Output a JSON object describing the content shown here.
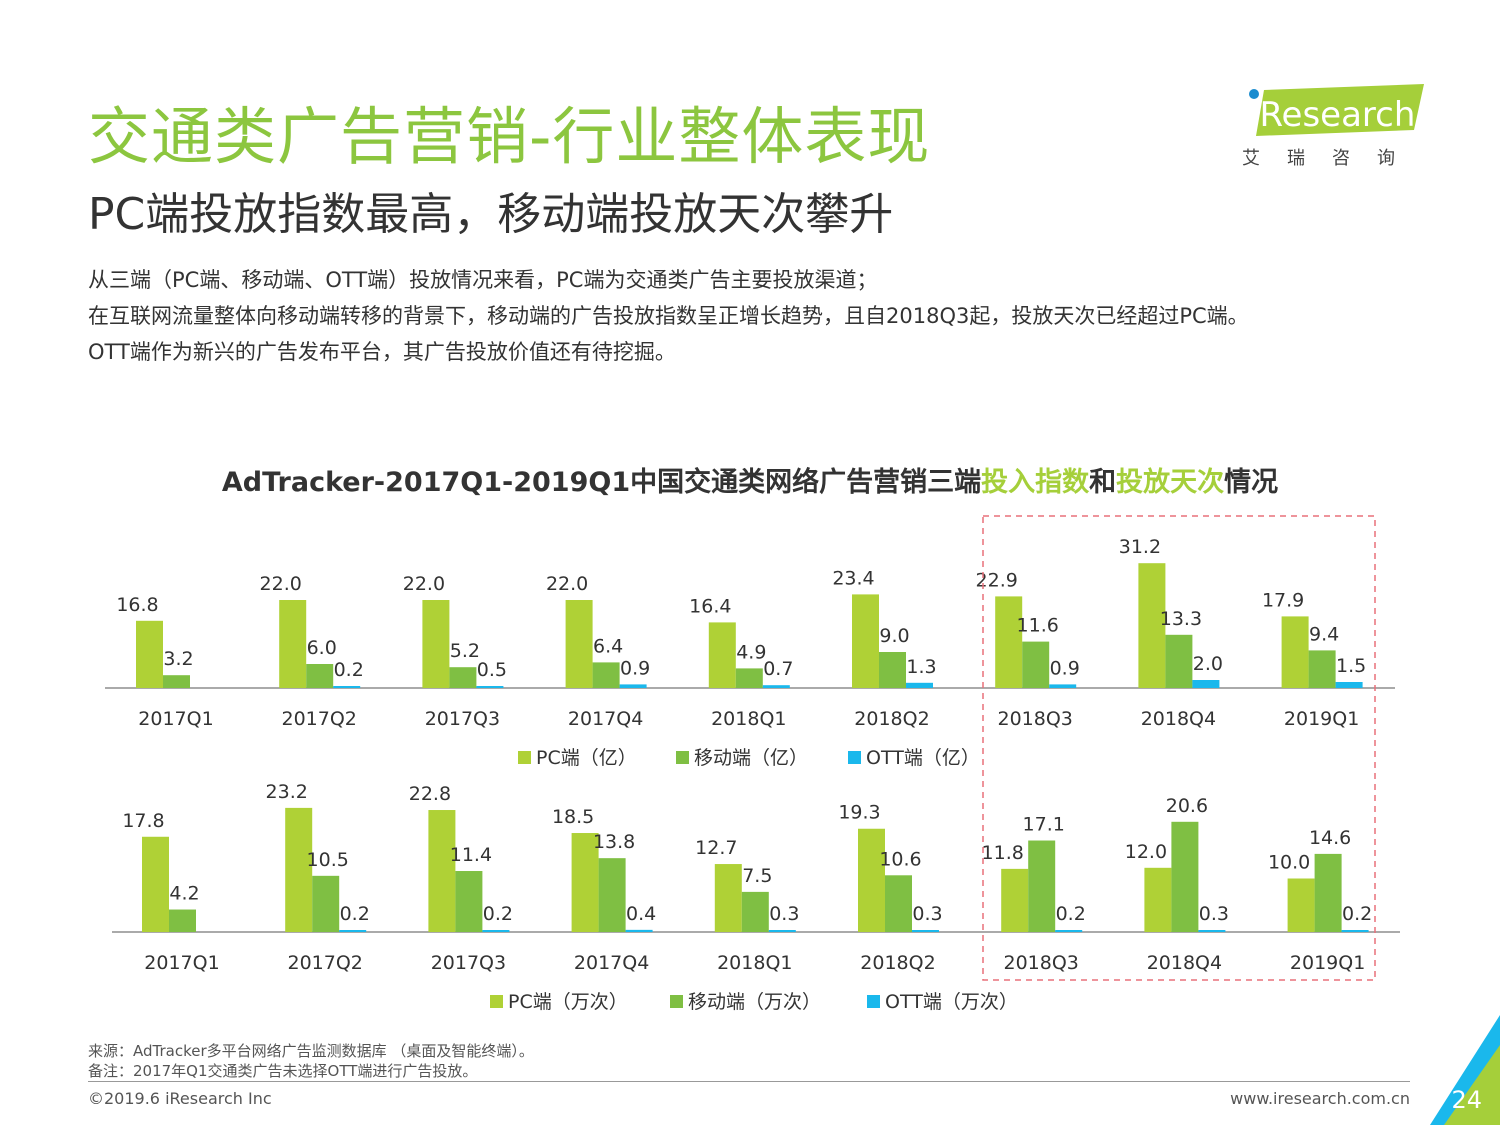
{
  "header": {
    "title": "交通类广告营销-行业整体表现",
    "subtitle": "PC端投放指数最高，移动端投放天次攀升"
  },
  "logo": {
    "brand": "iResearch",
    "chinese": "艾瑞咨询"
  },
  "description": [
    "从三端（PC端、移动端、OTT端）投放情况来看，PC端为交通类广告主要投放渠道；",
    "在互联网流量整体向移动端转移的背景下，移动端的广告投放指数呈正增长趋势，且自2018Q3起，投放天次已经超过PC端。",
    "OTT端作为新兴的广告发布平台，其广告投放价值还有待挖掘。"
  ],
  "chart_title": {
    "prefix": "AdTracker-2017Q1-2019Q1中国交通类网络广告营销三端",
    "highlight1": "投入指数",
    "middle": "和",
    "highlight2": "投放天次",
    "suffix": "情况"
  },
  "chart_data": [
    {
      "type": "bar",
      "categories": [
        "2017Q1",
        "2017Q2",
        "2017Q3",
        "2017Q4",
        "2018Q1",
        "2018Q2",
        "2018Q3",
        "2018Q4",
        "2019Q1"
      ],
      "series": [
        {
          "name": "PC端（亿）",
          "values": [
            16.8,
            22.0,
            22.0,
            22.0,
            16.4,
            23.4,
            22.9,
            31.2,
            17.9
          ]
        },
        {
          "name": "移动端（亿）",
          "values": [
            3.2,
            6.0,
            5.2,
            6.4,
            4.9,
            9.0,
            11.6,
            13.3,
            9.4
          ]
        },
        {
          "name": "OTT端（亿）",
          "values": [
            null,
            0.2,
            0.5,
            0.9,
            0.7,
            1.3,
            0.9,
            2.0,
            1.5
          ]
        }
      ],
      "ylim": [
        0,
        32
      ],
      "legend": "bottom",
      "colors": [
        "#afd136",
        "#7fbf43",
        "#1ab8ec"
      ]
    },
    {
      "type": "bar",
      "categories": [
        "2017Q1",
        "2017Q2",
        "2017Q3",
        "2017Q4",
        "2018Q1",
        "2018Q2",
        "2018Q3",
        "2018Q4",
        "2019Q1"
      ],
      "series": [
        {
          "name": "PC端（万次）",
          "values": [
            17.8,
            23.2,
            22.8,
            18.5,
            12.7,
            19.3,
            11.8,
            12.0,
            10.0
          ]
        },
        {
          "name": "移动端（万次）",
          "values": [
            4.2,
            10.5,
            11.4,
            13.8,
            7.5,
            10.6,
            17.1,
            20.6,
            14.6
          ]
        },
        {
          "name": "OTT端（万次）",
          "values": [
            null,
            0.2,
            0.2,
            0.4,
            0.3,
            0.3,
            0.2,
            0.3,
            0.2
          ]
        }
      ],
      "ylim": [
        0,
        23.2
      ],
      "legend": "bottom",
      "colors": [
        "#afd136",
        "#7fbf43",
        "#1ab8ec"
      ]
    }
  ],
  "footer": {
    "source": "来源：AdTracker多平台网络广告监测数据库 （桌面及智能终端）。",
    "note": "备注：2017年Q1交通类广告未选择OTT端进行广告投放。",
    "copyright": "©2019.6 iResearch Inc",
    "website": "www.iresearch.com.cn",
    "page_number": "24"
  }
}
